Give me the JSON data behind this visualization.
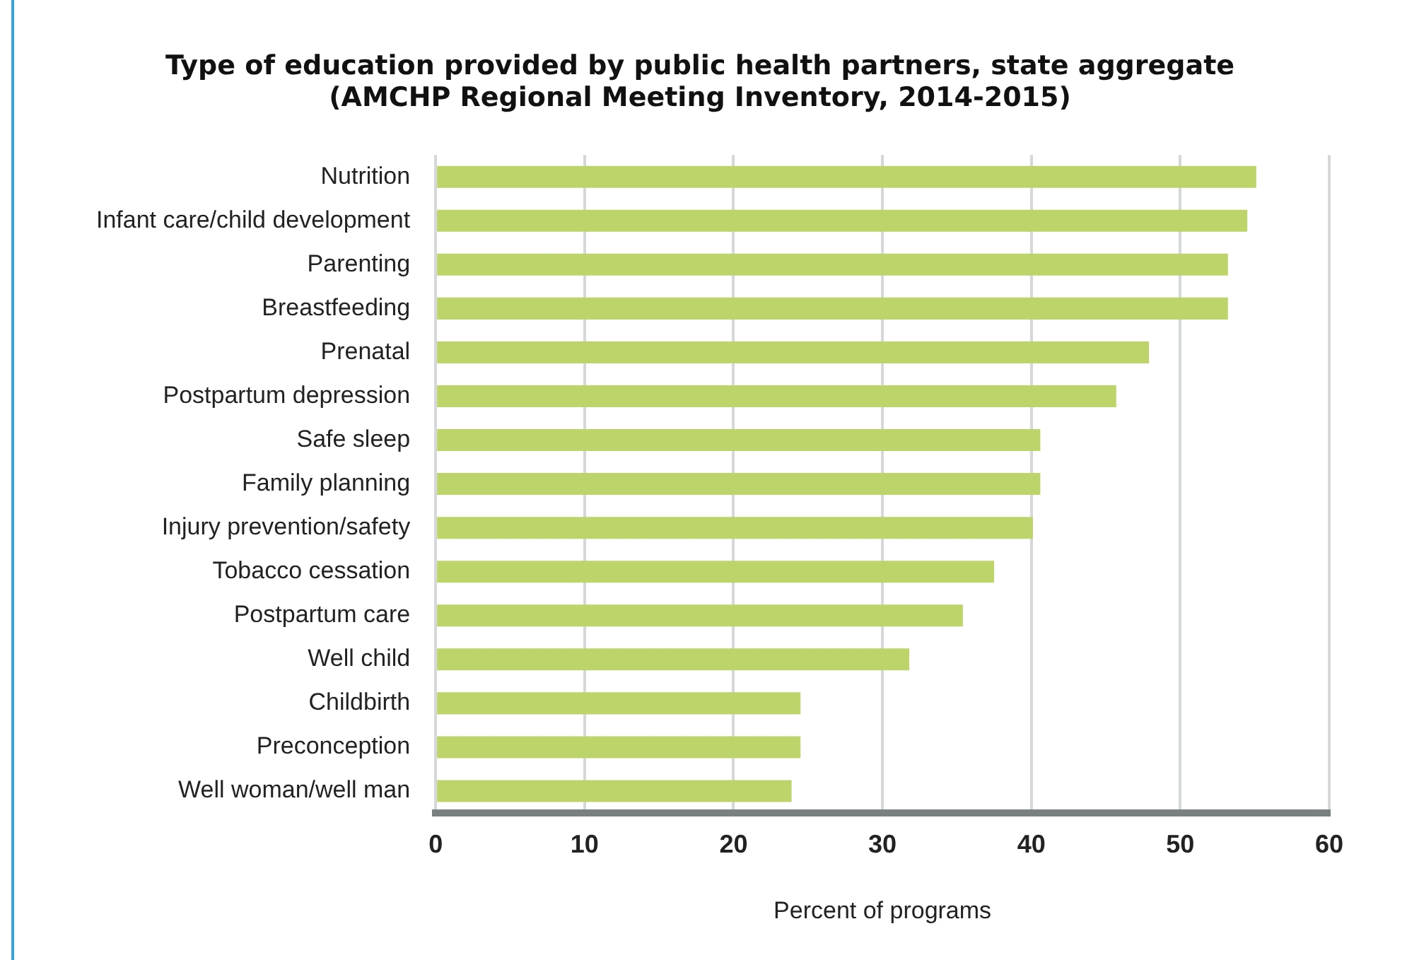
{
  "chart_data": {
    "type": "bar",
    "orientation": "horizontal",
    "title": [
      "Type of education provided by public health partners, state aggregate",
      "(AMCHP Regional Meeting Inventory, 2014-2015)"
    ],
    "xlabel": "Percent of programs",
    "categories": [
      "Nutrition",
      "Infant care/child development",
      "Parenting",
      "Breastfeeding",
      "Prenatal",
      "Postpartum depression",
      "Safe sleep",
      "Family planning",
      "Injury prevention/safety",
      "Tobacco cessation",
      "Postpartum care",
      "Well child",
      "Childbirth",
      "Preconception",
      "Well woman/well man"
    ],
    "values": [
      55.1,
      54.5,
      53.2,
      53.2,
      47.9,
      45.7,
      40.6,
      40.6,
      40.1,
      37.5,
      35.4,
      31.8,
      24.5,
      24.5,
      23.9
    ],
    "color": "#bdd46a",
    "xlim": [
      0,
      60
    ],
    "xticks": [
      0,
      10,
      20,
      30,
      40,
      50,
      60
    ],
    "grid": "x",
    "legend": false
  }
}
